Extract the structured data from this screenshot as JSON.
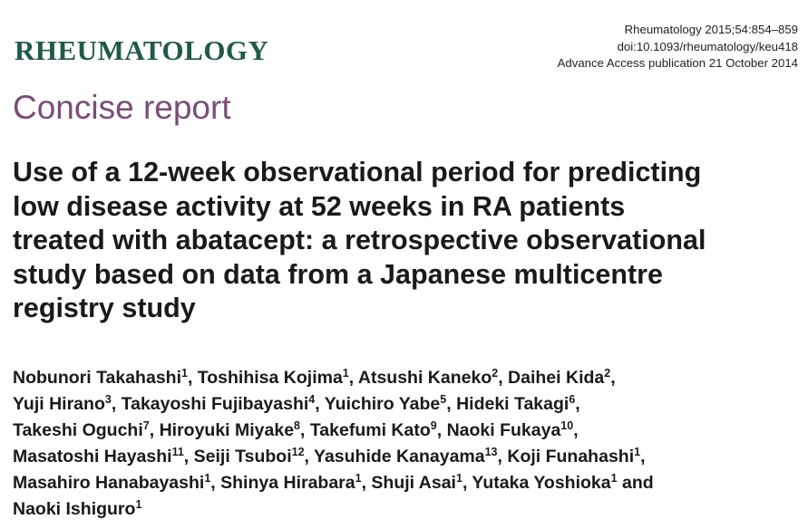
{
  "journal": {
    "name": "RHEUMATOLOGY"
  },
  "citation": {
    "line1": "Rheumatology 2015;54:854–859",
    "line2": "doi:10.1093/rheumatology/keu418",
    "line3": "Advance Access publication 21 October 2014"
  },
  "section": {
    "label": "Concise report"
  },
  "title": {
    "lines": [
      "Use of a 12-week observational period for predicting",
      "low disease activity at 52 weeks in RA patients",
      "treated with abatacept: a retrospective observational",
      "study based on data from a Japanese multicentre",
      "registry study"
    ]
  },
  "authors": {
    "lines": [
      [
        {
          "name": "Nobunori Takahashi",
          "aff": "1",
          "sep": ", "
        },
        {
          "name": "Toshihisa Kojima",
          "aff": "1",
          "sep": ", "
        },
        {
          "name": "Atsushi Kaneko",
          "aff": "2",
          "sep": ", "
        },
        {
          "name": "Daihei Kida",
          "aff": "2",
          "sep": ","
        }
      ],
      [
        {
          "name": "Yuji Hirano",
          "aff": "3",
          "sep": ", "
        },
        {
          "name": "Takayoshi Fujibayashi",
          "aff": "4",
          "sep": ", "
        },
        {
          "name": "Yuichiro Yabe",
          "aff": "5",
          "sep": ", "
        },
        {
          "name": "Hideki Takagi",
          "aff": "6",
          "sep": ","
        }
      ],
      [
        {
          "name": "Takeshi Oguchi",
          "aff": "7",
          "sep": ", "
        },
        {
          "name": "Hiroyuki Miyake",
          "aff": "8",
          "sep": ", "
        },
        {
          "name": "Takefumi Kato",
          "aff": "9",
          "sep": ", "
        },
        {
          "name": "Naoki Fukaya",
          "aff": "10",
          "sep": ","
        }
      ],
      [
        {
          "name": "Masatoshi Hayashi",
          "aff": "11",
          "sep": ", "
        },
        {
          "name": "Seiji Tsuboi",
          "aff": "12",
          "sep": ", "
        },
        {
          "name": "Yasuhide Kanayama",
          "aff": "13",
          "sep": ", "
        },
        {
          "name": "Koji Funahashi",
          "aff": "1",
          "sep": ","
        }
      ],
      [
        {
          "name": "Masahiro Hanabayashi",
          "aff": "1",
          "sep": ", "
        },
        {
          "name": "Shinya Hirabara",
          "aff": "1",
          "sep": ", "
        },
        {
          "name": "Shuji Asai",
          "aff": "1",
          "sep": ", "
        },
        {
          "name": "Yutaka Yoshioka",
          "aff": "1",
          "sep": " and"
        }
      ],
      [
        {
          "name": "Naoki Ishiguro",
          "aff": "1",
          "sep": ""
        }
      ]
    ]
  }
}
